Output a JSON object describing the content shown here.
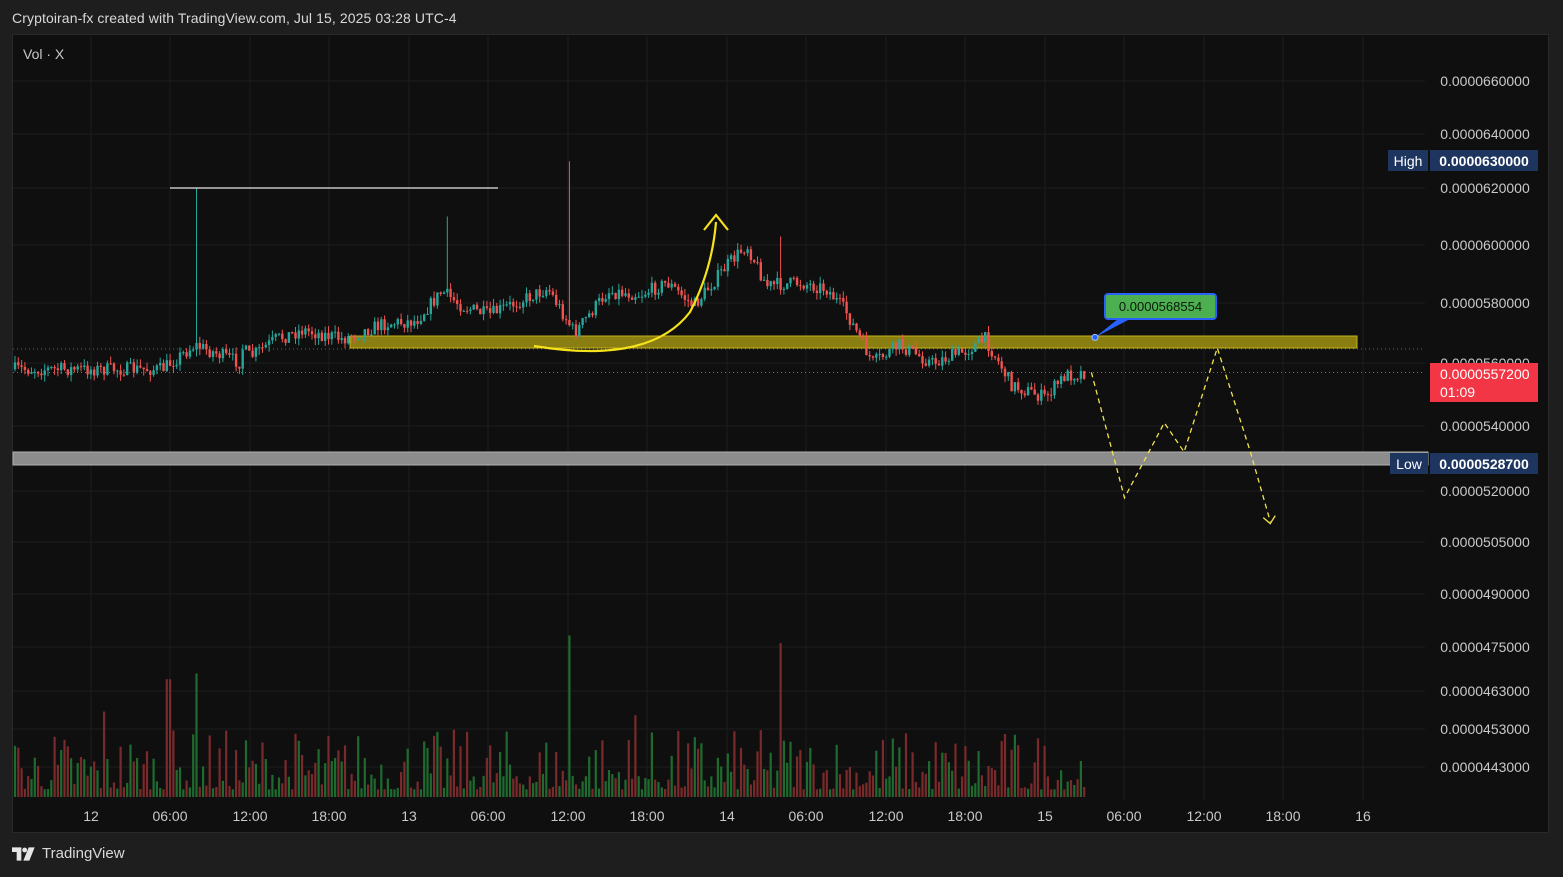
{
  "header": {
    "title": "Cryptoiran-fx created with TradingView.com, Jul 15, 2025 03:28 UTC-4"
  },
  "legend": {
    "vol_label": "Vol · X"
  },
  "footer": {
    "brand": "TradingView",
    "logo_icon": "tradingview-logo-icon"
  },
  "colors": {
    "up": "#26a69a",
    "down": "#ef5350",
    "zone_resistance": "#8a7d12",
    "zone_support": "#8c8c8c",
    "projection": "#f2e34c",
    "current_price": "#f23645",
    "high_low_badge": "#1e3560",
    "annotation_green": "#4caf50",
    "annotation_border": "#2962ff"
  },
  "chart_data": {
    "type": "candlestick",
    "y_axis_ticks": [
      "0.0000660000",
      "0.0000640000",
      "0.0000620000",
      "0.0000600000",
      "0.0000580000",
      "0.0000560000",
      "0.0000540000",
      "0.0000520000",
      "0.0000505000",
      "0.0000490000",
      "0.0000475000",
      "0.0000463000",
      "0.0000453000",
      "0.0000443000"
    ],
    "x_axis_ticks": [
      "12",
      "06:00",
      "12:00",
      "18:00",
      "13",
      "06:00",
      "12:00",
      "18:00",
      "14",
      "06:00",
      "12:00",
      "18:00",
      "15",
      "06:00",
      "12:00",
      "18:00",
      "16"
    ],
    "high": {
      "label": "High",
      "value": "0.0000630000"
    },
    "low": {
      "label": "Low",
      "value": "0.0000528700"
    },
    "current_price": {
      "value": "0.0000557200",
      "countdown": "01:09"
    },
    "annotation": {
      "text": "0.0000568554",
      "price": 5.68554e-05
    },
    "resistance_zone": [
      5.65e-05,
      5.69e-05
    ],
    "support_zone": [
      5.28e-05,
      5.32e-05
    ],
    "prior_high_line": 6.2e-05,
    "projection_path": [
      {
        "x": "15 03:30",
        "y": 5.57e-05
      },
      {
        "x": "15 06:00",
        "y": 5.18e-05
      },
      {
        "x": "15 09:00",
        "y": 5.41e-05
      },
      {
        "x": "15 10:30",
        "y": 5.32e-05
      },
      {
        "x": "15 13:00",
        "y": 5.65e-05
      },
      {
        "x": "15 15:30",
        "y": 5.32e-05
      },
      {
        "x": "15 17:00",
        "y": 5.11e-05
      }
    ],
    "price_path": [
      {
        "x": "11 17:30",
        "y": 5.58e-05
      },
      {
        "x": "11 20:00",
        "y": 5.66e-05
      },
      {
        "x": "11 23:30",
        "y": 5.6e-05
      },
      {
        "x": "12 01:00",
        "y": 5.3e-05
      },
      {
        "x": "12 03:00",
        "y": 5.4e-05
      },
      {
        "x": "12 05:30",
        "y": 5.51e-05
      },
      {
        "x": "12 07:30",
        "y": 5.84e-05
      },
      {
        "x": "12 09:00",
        "y": 5.72e-05
      },
      {
        "x": "12 10:30",
        "y": 5.7e-05
      },
      {
        "x": "12 12:00",
        "y": 5.62e-05
      },
      {
        "x": "12 14:00",
        "y": 5.68e-05
      },
      {
        "x": "12 16:00",
        "y": 5.71e-05
      },
      {
        "x": "12 19:00",
        "y": 5.68e-05
      },
      {
        "x": "12 22:00",
        "y": 5.73e-05
      },
      {
        "x": "13 00:30",
        "y": 5.74e-05
      },
      {
        "x": "13 02:30",
        "y": 5.84e-05
      },
      {
        "x": "13 04:00",
        "y": 5.79e-05
      },
      {
        "x": "13 06:00",
        "y": 5.76e-05
      },
      {
        "x": "13 08:30",
        "y": 5.81e-05
      },
      {
        "x": "13 10:30",
        "y": 5.85e-05
      },
      {
        "x": "13 12:30",
        "y": 5.7e-05
      },
      {
        "x": "13 15:00",
        "y": 5.84e-05
      },
      {
        "x": "13 17:30",
        "y": 5.83e-05
      },
      {
        "x": "13 19:30",
        "y": 5.87e-05
      },
      {
        "x": "13 21:30",
        "y": 5.79e-05
      },
      {
        "x": "14 00:00",
        "y": 5.93e-05
      },
      {
        "x": "14 01:30",
        "y": 6e-05
      },
      {
        "x": "14 03:00",
        "y": 5.86e-05
      },
      {
        "x": "14 05:30",
        "y": 5.87e-05
      },
      {
        "x": "14 07:30",
        "y": 5.85e-05
      },
      {
        "x": "14 09:00",
        "y": 5.77e-05
      },
      {
        "x": "14 11:00",
        "y": 5.6e-05
      },
      {
        "x": "14 13:00",
        "y": 5.66e-05
      },
      {
        "x": "14 15:30",
        "y": 5.6e-05
      },
      {
        "x": "14 18:00",
        "y": 5.64e-05
      },
      {
        "x": "14 19:30",
        "y": 5.68e-05
      },
      {
        "x": "14 21:30",
        "y": 5.53e-05
      },
      {
        "x": "15 00:00",
        "y": 5.49e-05
      },
      {
        "x": "15 01:30",
        "y": 5.56e-05
      },
      {
        "x": "15 03:00",
        "y": 5.57e-05
      }
    ],
    "spike_highs": [
      {
        "x": "12 08:00",
        "y": 6.2e-05
      },
      {
        "x": "13 03:00",
        "y": 6.1e-05
      },
      {
        "x": "13 12:00",
        "y": 6.3e-05
      },
      {
        "x": "14 04:00",
        "y": 6.03e-05
      }
    ],
    "volume_spikes": [
      {
        "x": "12 08:00",
        "dir": "up",
        "h": 0.65
      },
      {
        "x": "13 12:00",
        "dir": "up",
        "h": 0.85
      },
      {
        "x": "14 04:00",
        "dir": "down",
        "h": 0.81
      },
      {
        "x": "12 01:00",
        "dir": "down",
        "h": 0.45
      },
      {
        "x": "13 17:00",
        "dir": "down",
        "h": 0.43
      },
      {
        "x": "11 18:00",
        "dir": "down",
        "h": 0.62
      }
    ]
  }
}
